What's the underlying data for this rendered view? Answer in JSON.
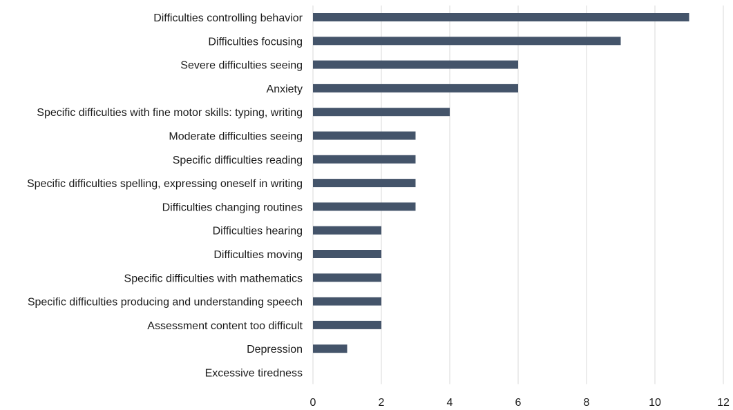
{
  "chart_data": {
    "type": "bar",
    "orientation": "horizontal",
    "title": "",
    "xlabel": "",
    "ylabel": "",
    "categories": [
      "Difficulties controlling behavior",
      "Difficulties focusing",
      "Severe difficulties seeing",
      "Anxiety",
      "Specific difficulties with fine motor skills: typing, writing",
      "Moderate difficulties seeing",
      "Specific difficulties reading",
      "Specific difficulties spelling, expressing oneself in writing",
      "Difficulties changing routines",
      "Difficulties hearing",
      "Difficulties moving",
      "Specific difficulties with mathematics",
      "Specific difficulties producing and understanding speech",
      "Assessment content too difficult",
      "Depression",
      "Excessive tiredness"
    ],
    "values": [
      11,
      9,
      6,
      6,
      4,
      3,
      3,
      3,
      3,
      2,
      2,
      2,
      2,
      2,
      1,
      0
    ],
    "xlim": [
      0,
      12
    ],
    "xticks": [
      0,
      2,
      4,
      6,
      8,
      10,
      12
    ],
    "grid": true,
    "legend": "none",
    "bar_color": "#44546a",
    "grid_color": "#d9d9d9"
  }
}
